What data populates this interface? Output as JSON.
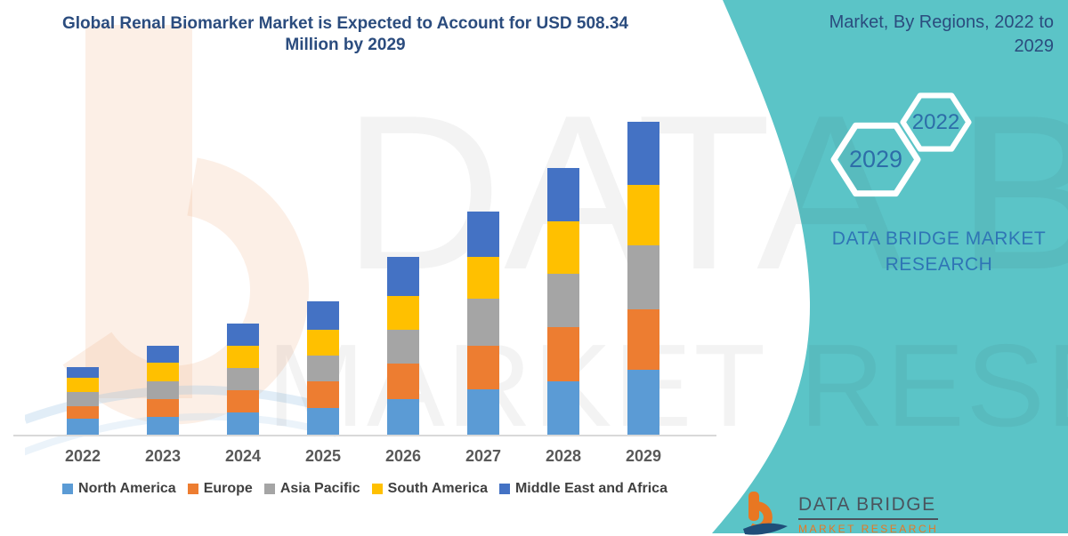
{
  "header": {
    "title": "Global Renal Biomarker Market is Expected to Account for USD 508.34 Million by 2029"
  },
  "panel": {
    "heading": "Market, By Regions, 2022 to 2029",
    "hex_year_front": "2029",
    "hex_year_back": "2022",
    "caption": "DATA BRIDGE MARKET RESEARCH",
    "logo_name": "DATA BRIDGE",
    "logo_sub": "MARKET RESEARCH"
  },
  "watermark": {
    "line1": "DATA BRIDGE",
    "line2": "MARKET RESEARCH"
  },
  "colors": {
    "teal": "#5BC4C7",
    "navy": "#2B4C7E",
    "hexText": "#2D6DA8",
    "captionBlue": "#2F75B5",
    "tickText": "#595959",
    "legendText": "#404040",
    "axisLine": "#D9D9D9",
    "logoGray": "#4A545E",
    "logoOrange": "#E87722"
  },
  "chart_data": {
    "type": "bar",
    "subtype": "stacked-column",
    "title": "Global Renal Biomarker Market is Expected to Account for USD 508.34 Million by 2029",
    "unit": "USD Million",
    "categories": [
      "2022",
      "2023",
      "2024",
      "2025",
      "2026",
      "2027",
      "2028",
      "2029"
    ],
    "series": [
      {
        "name": "North America",
        "color": "#5B9BD5",
        "values": [
          26.3,
          28.8,
          36.0,
          43.1,
          58.5,
          73.8,
          87.3,
          106.0
        ]
      },
      {
        "name": "Europe",
        "color": "#ED7D31",
        "values": [
          20.6,
          28.8,
          36.0,
          44.1,
          57.5,
          70.9,
          87.3,
          97.8
        ]
      },
      {
        "name": "Asia Pacific",
        "color": "#A5A5A5",
        "values": [
          22.6,
          29.2,
          36.0,
          42.1,
          55.1,
          75.8,
          86.3,
          103.5
        ]
      },
      {
        "name": "South America",
        "color": "#FFC000",
        "values": [
          22.6,
          29.8,
          36.0,
          41.7,
          54.2,
          69.0,
          85.3,
          99.2
        ]
      },
      {
        "name": "Middle East and Africa",
        "color": "#4472C4",
        "values": [
          18.1,
          27.3,
          36.0,
          46.0,
          63.7,
          72.5,
          87.1,
          101.8
        ]
      }
    ],
    "totals": [
      110.2,
      143.9,
      180.0,
      217.0,
      289.0,
      362.0,
      433.3,
      508.34
    ],
    "xlabel": "",
    "ylabel": "",
    "ylim": [
      0,
      520
    ],
    "gridlines": false,
    "y_axis_visible": false,
    "legend_position": "bottom",
    "stack_order_bottom_to_top": [
      "North America",
      "Europe",
      "Asia Pacific",
      "South America",
      "Middle East and Africa"
    ]
  }
}
